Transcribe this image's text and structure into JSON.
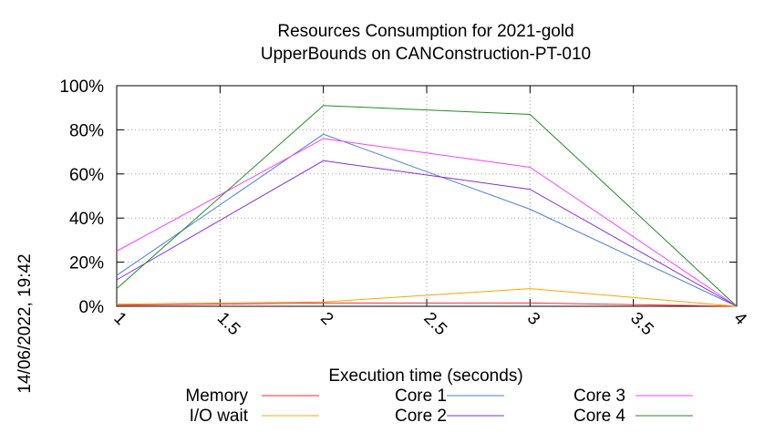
{
  "chart_data": {
    "type": "line",
    "title_lines": [
      "Resources Consumption for 2021-gold",
      "UpperBounds on CANConstruction-PT-010"
    ],
    "xlabel": "Execution time (seconds)",
    "ylabel": "",
    "side_label": "14/06/2022, 19:42",
    "xlim": [
      1,
      4
    ],
    "ylim": [
      0,
      100
    ],
    "x_ticks": [
      1,
      1.5,
      2,
      2.5,
      3,
      3.5,
      4
    ],
    "x_tick_labels": [
      "1",
      "1.5",
      "2",
      "2.5",
      "3",
      "3.5",
      "4"
    ],
    "y_ticks": [
      0,
      20,
      40,
      60,
      80,
      100
    ],
    "y_tick_labels": [
      "0%",
      "20%",
      "40%",
      "60%",
      "80%",
      "100%"
    ],
    "grid": true,
    "legend_position": "bottom",
    "x": [
      1,
      2,
      3,
      4
    ],
    "series": [
      {
        "name": "Memory",
        "color": "#ff2a2a",
        "values": [
          0.5,
          1.5,
          1.5,
          0
        ]
      },
      {
        "name": "I/O wait",
        "color": "#ffa500",
        "values": [
          1.0,
          2.0,
          8.0,
          0
        ]
      },
      {
        "name": "Core 1",
        "color": "#4a7fd8",
        "values": [
          14,
          78,
          44,
          0
        ]
      },
      {
        "name": "Core 2",
        "color": "#8a2be2",
        "values": [
          12,
          66,
          53,
          0
        ]
      },
      {
        "name": "Core 3",
        "color": "#ff40ff",
        "values": [
          25,
          76,
          63,
          0
        ]
      },
      {
        "name": "Core 4",
        "color": "#1f8f1f",
        "values": [
          8,
          91,
          87,
          0
        ]
      }
    ]
  }
}
